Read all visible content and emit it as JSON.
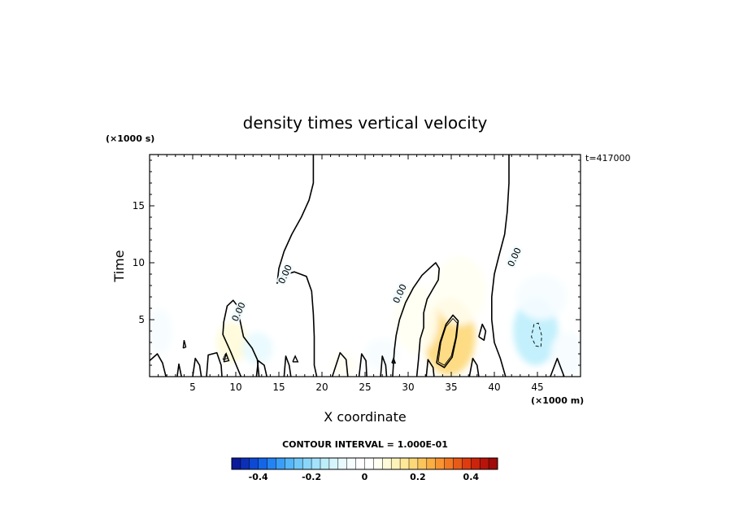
{
  "chart_data": {
    "type": "heatmap",
    "title": "density times vertical velocity",
    "xlabel": "X coordinate",
    "ylabel": "Time",
    "x_unit": "(×1000 m)",
    "y_unit": "(×1000 s)",
    "time_stamp": "t=417000",
    "contour_interval_label": "CONTOUR INTERVAL = 1.000E-01",
    "xlim": [
      0,
      50
    ],
    "ylim": [
      0,
      19.5
    ],
    "x_ticks": [
      5,
      10,
      15,
      20,
      25,
      30,
      35,
      40,
      45
    ],
    "y_ticks": [
      5,
      10,
      15
    ],
    "contour_labels": [
      {
        "text": "0.00",
        "x": 10.3,
        "y": 5.7
      },
      {
        "text": "0.00",
        "x": 15.7,
        "y": 9.0
      },
      {
        "text": "0.00",
        "x": 29.0,
        "y": 7.3
      },
      {
        "text": "0.00",
        "x": 42.3,
        "y": 10.5
      }
    ],
    "zero_contours": [
      [
        [
          19.0,
          19.5
        ],
        [
          19.0,
          17.0
        ],
        [
          18.5,
          15.5
        ],
        [
          17.6,
          14.0
        ],
        [
          16.5,
          12.5
        ],
        [
          15.6,
          11.0
        ],
        [
          15.0,
          9.5
        ],
        [
          14.8,
          8.2
        ],
        [
          15.5,
          8.9
        ],
        [
          16.8,
          9.2
        ],
        [
          18.2,
          8.8
        ],
        [
          18.8,
          7.5
        ],
        [
          19.0,
          5.5
        ],
        [
          19.1,
          3.5
        ],
        [
          19.1,
          1.0
        ],
        [
          19.4,
          0.0
        ]
      ],
      [
        [
          10.6,
          0.0
        ],
        [
          9.4,
          2.2
        ],
        [
          8.5,
          3.7
        ],
        [
          8.6,
          4.8
        ],
        [
          9.0,
          6.2
        ],
        [
          9.7,
          6.7
        ],
        [
          10.2,
          6.2
        ],
        [
          10.5,
          4.9
        ],
        [
          10.9,
          3.5
        ],
        [
          11.9,
          2.5
        ],
        [
          12.5,
          1.5
        ],
        [
          12.7,
          0.0
        ]
      ],
      [
        [
          28.2,
          0.0
        ],
        [
          28.4,
          2.3
        ],
        [
          28.6,
          3.6
        ],
        [
          29.0,
          5.0
        ],
        [
          29.7,
          6.5
        ],
        [
          30.6,
          7.8
        ],
        [
          31.6,
          8.9
        ],
        [
          32.6,
          9.6
        ],
        [
          33.2,
          10.0
        ],
        [
          33.6,
          9.5
        ],
        [
          33.5,
          8.5
        ],
        [
          32.8,
          7.6
        ],
        [
          32.2,
          6.8
        ],
        [
          31.8,
          5.6
        ],
        [
          31.8,
          4.3
        ],
        [
          31.4,
          3.3
        ],
        [
          31.2,
          1.5
        ],
        [
          31.0,
          0.0
        ]
      ],
      [
        [
          41.7,
          19.5
        ],
        [
          41.7,
          17.0
        ],
        [
          41.5,
          14.5
        ],
        [
          41.2,
          12.5
        ],
        [
          40.5,
          10.5
        ],
        [
          40.0,
          9.0
        ],
        [
          39.7,
          7.0
        ],
        [
          39.7,
          5.0
        ],
        [
          40.0,
          3.0
        ],
        [
          40.7,
          1.6
        ],
        [
          41.3,
          0.0
        ]
      ],
      [
        [
          33.3,
          1.2
        ],
        [
          33.7,
          3.0
        ],
        [
          34.4,
          4.6
        ],
        [
          35.2,
          5.4
        ],
        [
          35.8,
          4.9
        ],
        [
          35.6,
          3.5
        ],
        [
          35.1,
          1.7
        ],
        [
          34.2,
          0.8
        ],
        [
          33.3,
          1.2
        ]
      ],
      [
        [
          38.2,
          3.5
        ],
        [
          38.6,
          4.6
        ],
        [
          39.0,
          4.0
        ],
        [
          38.8,
          3.2
        ],
        [
          38.2,
          3.5
        ]
      ],
      [
        [
          0.0,
          1.4
        ],
        [
          0.9,
          2.0
        ],
        [
          1.5,
          1.2
        ],
        [
          1.9,
          0.0
        ]
      ],
      [
        [
          3.2,
          0.0
        ],
        [
          3.4,
          1.1
        ],
        [
          3.7,
          0.0
        ]
      ],
      [
        [
          5.0,
          0.0
        ],
        [
          5.3,
          1.6
        ],
        [
          5.8,
          1.0
        ],
        [
          6.0,
          0.0
        ]
      ],
      [
        [
          6.6,
          0.0
        ],
        [
          6.8,
          1.9
        ],
        [
          7.8,
          2.1
        ],
        [
          8.3,
          1.0
        ],
        [
          8.4,
          0.0
        ]
      ],
      [
        [
          12.4,
          0.0
        ],
        [
          12.6,
          1.4
        ],
        [
          13.3,
          1.0
        ],
        [
          13.6,
          0.0
        ]
      ],
      [
        [
          15.6,
          0.0
        ],
        [
          15.8,
          1.8
        ],
        [
          16.2,
          1.0
        ],
        [
          16.4,
          0.0
        ]
      ],
      [
        [
          21.2,
          0.0
        ],
        [
          22.1,
          2.1
        ],
        [
          22.8,
          1.5
        ],
        [
          23.0,
          0.0
        ]
      ],
      [
        [
          24.3,
          0.0
        ],
        [
          24.6,
          2.0
        ],
        [
          25.1,
          1.4
        ],
        [
          25.2,
          0.0
        ]
      ],
      [
        [
          26.8,
          0.0
        ],
        [
          27.0,
          1.8
        ],
        [
          27.4,
          1.0
        ],
        [
          27.5,
          0.0
        ]
      ],
      [
        [
          32.1,
          0.0
        ],
        [
          32.3,
          1.5
        ],
        [
          32.9,
          0.8
        ],
        [
          33.0,
          0.0
        ]
      ],
      [
        [
          37.1,
          0.0
        ],
        [
          37.5,
          1.6
        ],
        [
          38.0,
          1.0
        ],
        [
          38.2,
          0.0
        ]
      ],
      [
        [
          46.5,
          0.0
        ],
        [
          47.3,
          1.6
        ],
        [
          48.1,
          0.0
        ]
      ]
    ],
    "closed_zero_contours": [
      [
        [
          3.9,
          2.5
        ],
        [
          4.0,
          3.2
        ],
        [
          4.2,
          2.6
        ],
        [
          3.9,
          2.5
        ]
      ],
      [
        [
          8.6,
          1.3
        ],
        [
          8.9,
          2.0
        ],
        [
          9.2,
          1.4
        ],
        [
          8.6,
          1.3
        ]
      ],
      [
        [
          16.6,
          1.3
        ],
        [
          16.9,
          1.8
        ],
        [
          17.2,
          1.3
        ],
        [
          16.6,
          1.3
        ]
      ],
      [
        [
          28.1,
          1.2
        ],
        [
          28.3,
          1.6
        ],
        [
          28.5,
          1.2
        ],
        [
          28.1,
          1.2
        ]
      ]
    ],
    "positive_contours": [
      {
        "level": 0.1,
        "points": [
          [
            33.5,
            1.3
          ],
          [
            33.8,
            3.0
          ],
          [
            34.4,
            4.4
          ],
          [
            35.2,
            5.1
          ],
          [
            35.7,
            4.7
          ],
          [
            35.5,
            3.4
          ],
          [
            35.0,
            1.8
          ],
          [
            34.2,
            1.0
          ],
          [
            33.5,
            1.3
          ]
        ]
      },
      {
        "level": 0.1,
        "points": [
          [
            8.5,
            1.5
          ],
          [
            8.8,
            2.0
          ],
          [
            9.1,
            1.6
          ],
          [
            8.5,
            1.5
          ]
        ]
      }
    ],
    "negative_contours": [
      {
        "level": -0.1,
        "points": [
          [
            44.6,
            4.6
          ],
          [
            44.3,
            3.5
          ],
          [
            44.8,
            2.7
          ],
          [
            45.4,
            2.6
          ],
          [
            45.5,
            3.6
          ],
          [
            45.1,
            4.7
          ],
          [
            44.6,
            4.6
          ]
        ]
      }
    ],
    "field_blobs": [
      {
        "x": 34.8,
        "y": 3.5,
        "sx": 3.0,
        "sy": 3.4,
        "value": 0.17
      },
      {
        "x": 36.0,
        "y": 7.5,
        "sx": 3.0,
        "sy": 3.0,
        "value": 0.05
      },
      {
        "x": 31.0,
        "y": 5.0,
        "sx": 2.5,
        "sy": 3.0,
        "value": 0.04
      },
      {
        "x": 9.6,
        "y": 3.0,
        "sx": 1.8,
        "sy": 1.8,
        "value": 0.07
      },
      {
        "x": 22.5,
        "y": 1.0,
        "sx": 1.4,
        "sy": 1.0,
        "value": 0.06
      },
      {
        "x": 44.8,
        "y": 4.0,
        "sx": 2.6,
        "sy": 3.0,
        "value": -0.16
      },
      {
        "x": 45.5,
        "y": 7.0,
        "sx": 3.0,
        "sy": 2.0,
        "value": -0.05
      },
      {
        "x": 12.5,
        "y": 2.5,
        "sx": 1.8,
        "sy": 1.4,
        "value": -0.07
      },
      {
        "x": 27.0,
        "y": 2.0,
        "sx": 2.0,
        "sy": 1.4,
        "value": -0.05
      },
      {
        "x": 1.2,
        "y": 4.0,
        "sx": 1.5,
        "sy": 2.0,
        "value": -0.04
      },
      {
        "x": 48.5,
        "y": 2.0,
        "sx": 2.0,
        "sy": 2.0,
        "value": -0.04
      }
    ],
    "background_value": -0.02,
    "colorbar": {
      "vmin": -0.5,
      "vmax": 0.5,
      "tick_values": [
        -0.4,
        -0.2,
        0,
        0.2,
        0.4
      ],
      "tick_labels": [
        "-0.4",
        "-0.2",
        "0",
        "0.2",
        "0.4"
      ],
      "colors": [
        "#0a1a9a",
        "#0c2fb8",
        "#0e49d4",
        "#1466e8",
        "#2483f2",
        "#3a9ef6",
        "#55b6f8",
        "#70c8f9",
        "#8ad6fa",
        "#a3e3fb",
        "#bdeefc",
        "#d5f5fd",
        "#e8fafe",
        "#f6fdff",
        "#ffffff",
        "#ffffff",
        "#fffff2",
        "#fffbd8",
        "#fff3b8",
        "#fee898",
        "#fdd878",
        "#fcc55c",
        "#fbae44",
        "#f89432",
        "#f27824",
        "#e85a18",
        "#dc3c10",
        "#cc240c",
        "#b8140a",
        "#a00a08"
      ]
    }
  }
}
